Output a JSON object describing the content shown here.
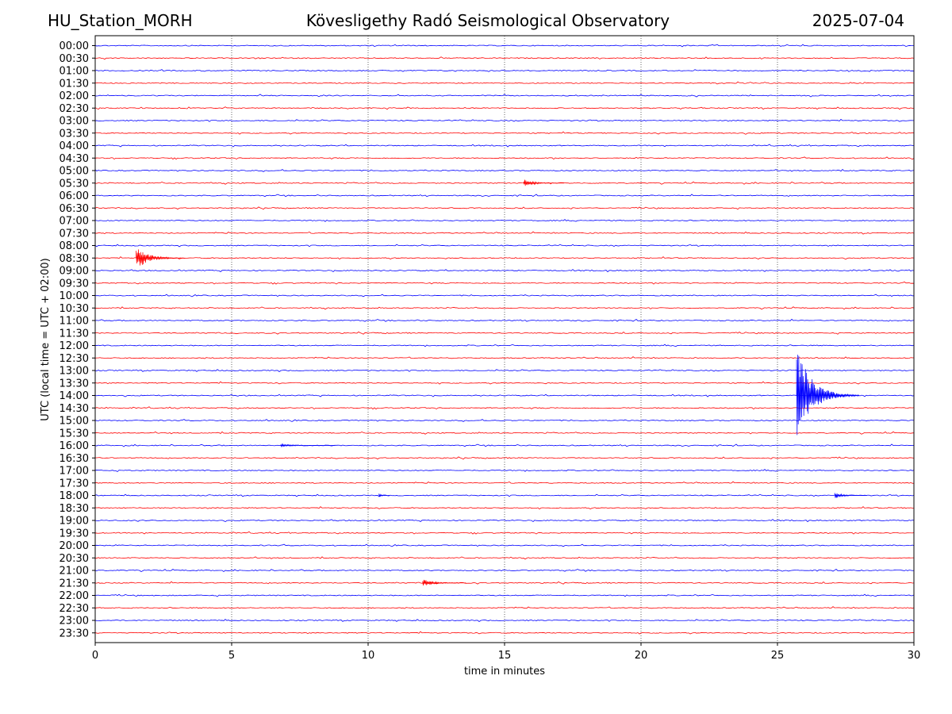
{
  "header": {
    "station": "HU_Station_MORH",
    "observatory": "Kövesligethy Radó Seismological Observatory",
    "date": "2025-07-04"
  },
  "chart_data": {
    "type": "line",
    "title": "Kövesligethy Radó Seismological Observatory",
    "xlabel": "time in minutes",
    "ylabel": "UTC (local time = UTC + 02:00)",
    "xlim": [
      0,
      30
    ],
    "x_ticks": [
      0,
      5,
      10,
      15,
      20,
      25,
      30
    ],
    "grid": "vertical dotted lines at 5-minute intervals",
    "row_labels": [
      "00:00",
      "00:30",
      "01:00",
      "01:30",
      "02:00",
      "02:30",
      "03:00",
      "03:30",
      "04:00",
      "04:30",
      "05:00",
      "05:30",
      "06:00",
      "06:30",
      "07:00",
      "07:30",
      "08:00",
      "08:30",
      "09:00",
      "09:30",
      "10:00",
      "10:30",
      "11:00",
      "11:30",
      "12:00",
      "12:30",
      "13:00",
      "13:30",
      "14:00",
      "14:30",
      "15:00",
      "15:30",
      "16:00",
      "16:30",
      "17:00",
      "17:30",
      "18:00",
      "18:30",
      "19:00",
      "19:30",
      "20:00",
      "20:30",
      "21:00",
      "21:30",
      "22:00",
      "22:30",
      "23:00",
      "23:30"
    ],
    "trace_colors": [
      "#0000ff",
      "#ff0000"
    ],
    "events": [
      {
        "row": "05:30",
        "start_min": 15.7,
        "duration_min": 1.5,
        "peak_amplitude_rows": 0.3
      },
      {
        "row": "08:30",
        "start_min": 1.5,
        "duration_min": 1.8,
        "peak_amplitude_rows": 1.0
      },
      {
        "row": "14:00",
        "start_min": 25.7,
        "duration_min": 2.3,
        "peak_amplitude_rows": 4.0
      },
      {
        "row": "16:00",
        "start_min": 6.8,
        "duration_min": 2.0,
        "peak_amplitude_rows": 0.12
      },
      {
        "row": "18:00",
        "start_min": 10.4,
        "duration_min": 0.4,
        "peak_amplitude_rows": 0.15
      },
      {
        "row": "18:00",
        "start_min": 27.1,
        "duration_min": 1.2,
        "peak_amplitude_rows": 0.25
      },
      {
        "row": "21:30",
        "start_min": 12.0,
        "duration_min": 1.6,
        "peak_amplitude_rows": 0.3
      }
    ]
  }
}
